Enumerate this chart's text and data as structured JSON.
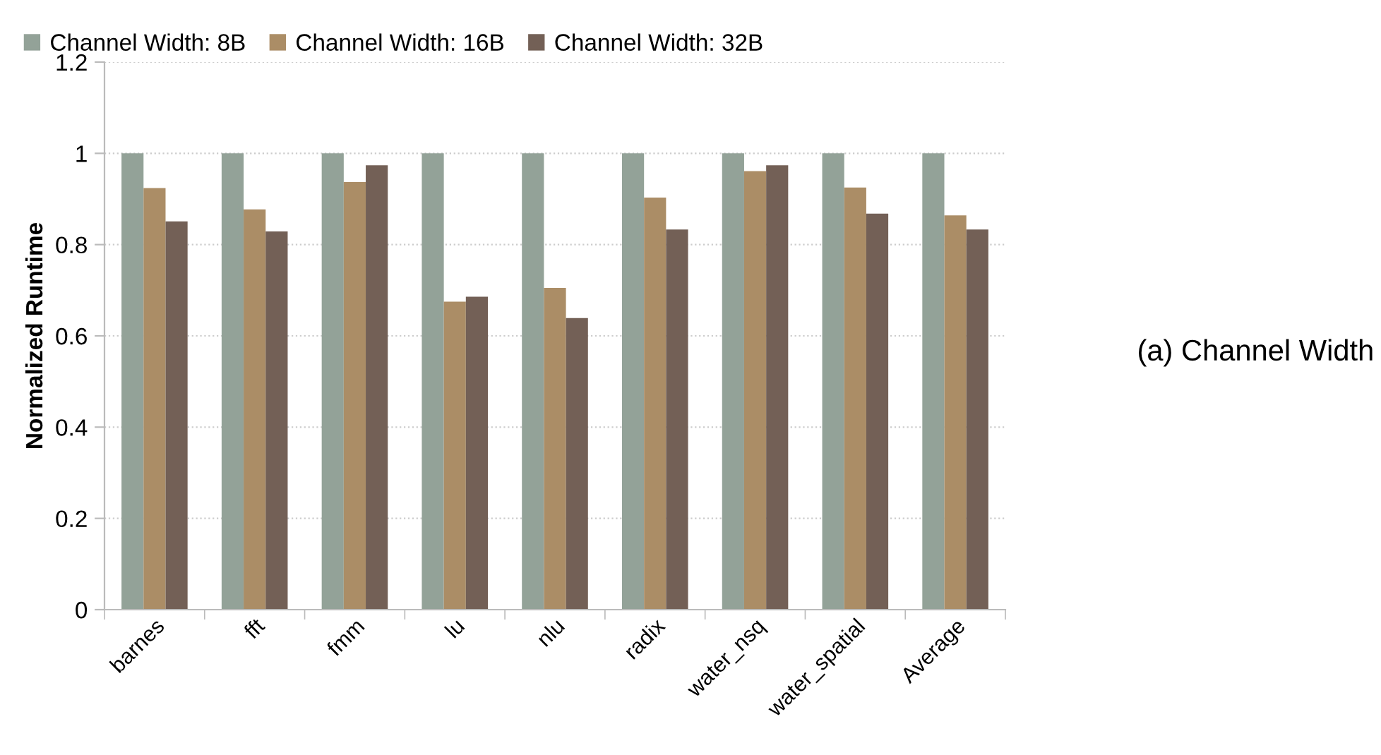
{
  "chart_data": {
    "type": "bar",
    "ylabel": "Normalized Runtime",
    "categories": [
      "barnes",
      "fft",
      "fmm",
      "lu",
      "nlu",
      "radix",
      "water_nsq",
      "water_spatial",
      "Average"
    ],
    "series": [
      {
        "name": "Channel Width: 8B",
        "color": "#93a298",
        "values": [
          1,
          1,
          1,
          1,
          1,
          1,
          1,
          1,
          1
        ]
      },
      {
        "name": "Channel Width: 16B",
        "color": "#ab8d66",
        "values": [
          0.924,
          0.877,
          0.937,
          0.675,
          0.705,
          0.903,
          0.961,
          0.925,
          0.864
        ]
      },
      {
        "name": "Channel Width: 32B",
        "color": "#736056",
        "values": [
          0.851,
          0.829,
          0.974,
          0.686,
          0.639,
          0.833,
          0.974,
          0.868,
          0.833
        ]
      }
    ],
    "ylim": [
      0,
      1.2
    ],
    "yticks": [
      0,
      0.2,
      0.4,
      0.6,
      0.8,
      1,
      1.2
    ],
    "grid": "y",
    "legend": "top left",
    "annotations": [
      "(a) Channel Width"
    ]
  }
}
